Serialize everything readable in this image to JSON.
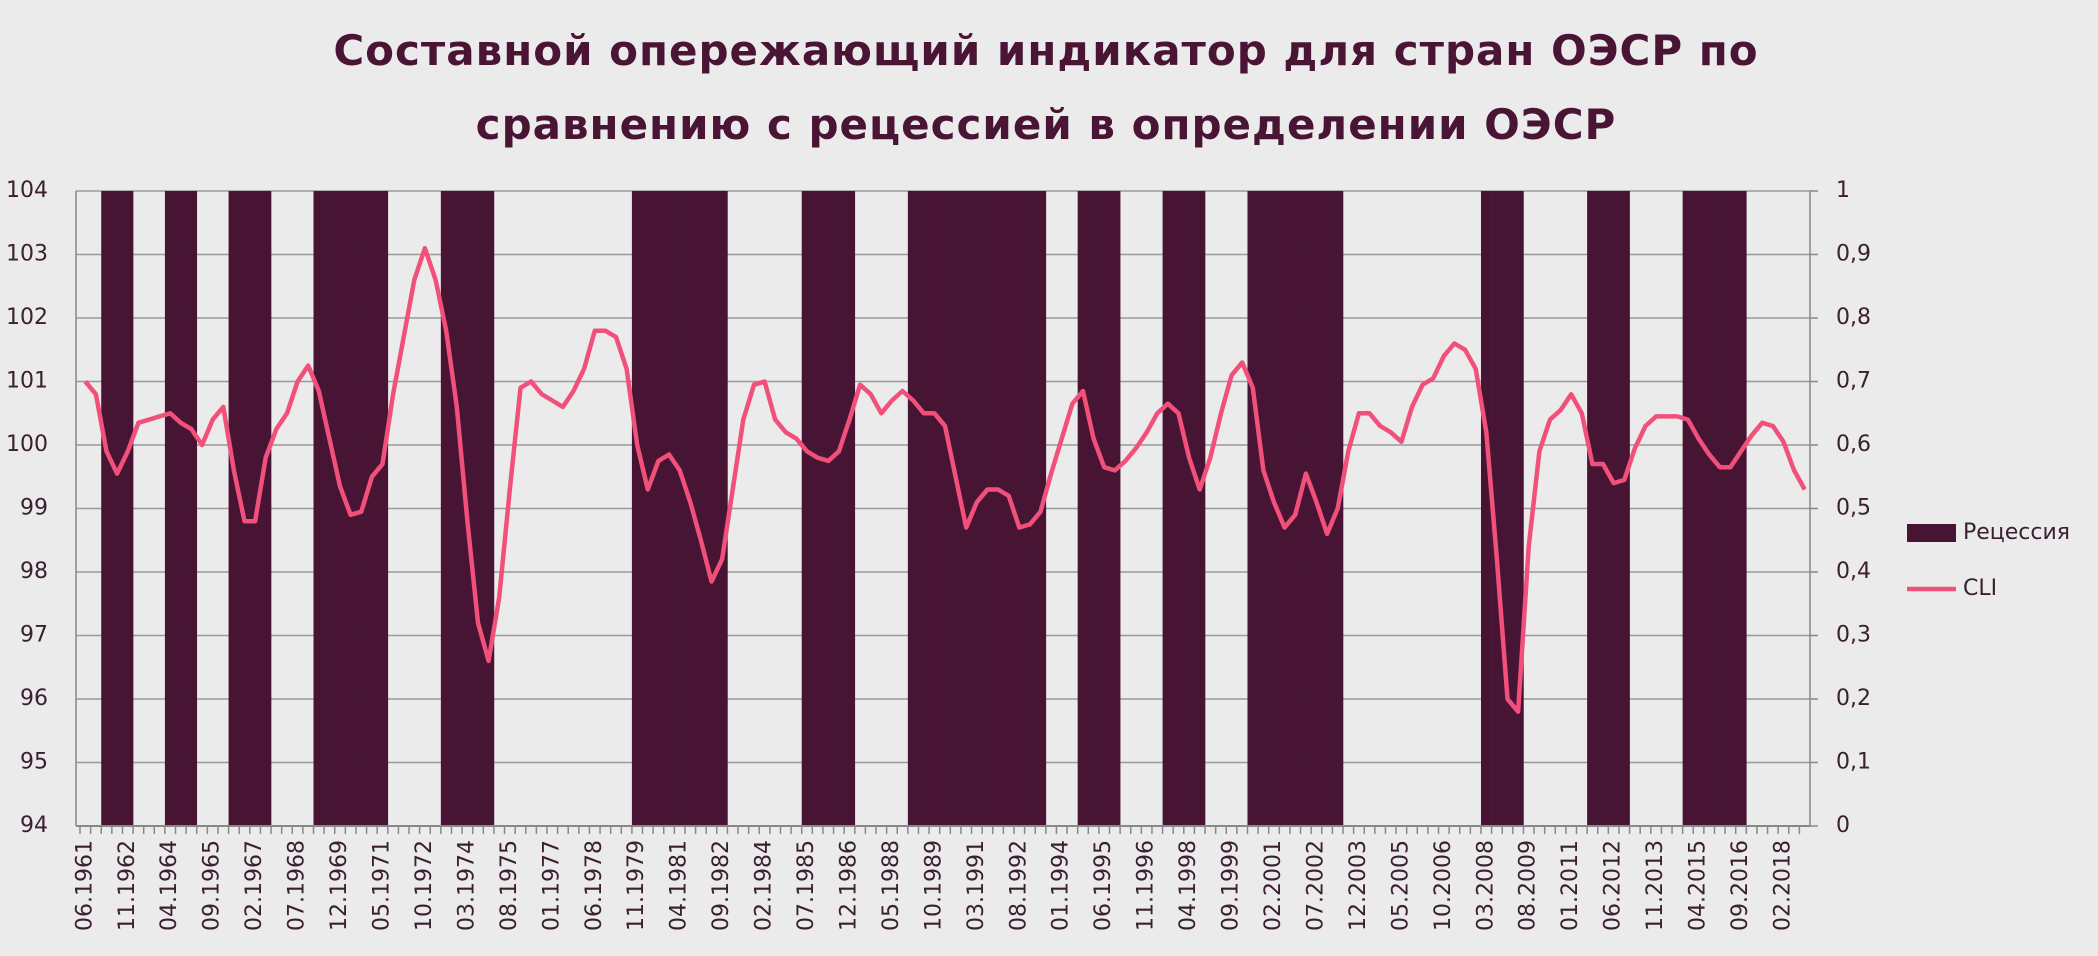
{
  "chart_data": {
    "type": "combo",
    "title": "Составной опережающий индикатор для стран ОЭСР по сравнению с рецессией в определении ОЭСР",
    "categories": [
      "06.1961",
      null,
      null,
      null,
      "11.1962",
      null,
      null,
      null,
      "04.1964",
      null,
      null,
      null,
      "09.1965",
      null,
      null,
      null,
      "02.1967",
      null,
      null,
      null,
      "07.1968",
      null,
      null,
      null,
      "12.1969",
      null,
      null,
      null,
      "05.1971",
      null,
      null,
      null,
      "10.1972",
      null,
      null,
      null,
      "03.1974",
      null,
      null,
      null,
      "08.1975",
      null,
      null,
      null,
      "01.1977",
      null,
      null,
      null,
      "06.1978",
      null,
      null,
      null,
      "11.1979",
      null,
      null,
      null,
      "04.1981",
      null,
      null,
      null,
      "09.1982",
      null,
      null,
      null,
      "02.1984",
      null,
      null,
      null,
      "07.1985",
      null,
      null,
      null,
      "12.1986",
      null,
      null,
      null,
      "05.1988",
      null,
      null,
      null,
      "10.1989",
      null,
      null,
      null,
      "03.1991",
      null,
      null,
      null,
      "08.1992",
      null,
      null,
      null,
      "01.1994",
      null,
      null,
      null,
      "06.1995",
      null,
      null,
      null,
      "11.1996",
      null,
      null,
      null,
      "04.1998",
      null,
      null,
      null,
      "09.1999",
      null,
      null,
      null,
      "02.2001",
      null,
      null,
      null,
      "07.2002",
      null,
      null,
      null,
      "12.2003",
      null,
      null,
      null,
      "05.2005",
      null,
      null,
      null,
      "10.2006",
      null,
      null,
      null,
      "03.2008",
      null,
      null,
      null,
      "08.2009",
      null,
      null,
      null,
      "01.2011",
      null,
      null,
      null,
      "06.2012",
      null,
      null,
      null,
      "11.2013",
      null,
      null,
      null,
      "04.2015",
      null,
      null,
      null,
      "09.2016",
      null,
      null,
      null,
      "02.2018",
      null,
      null
    ],
    "series": [
      {
        "name": "Рецессия",
        "type": "bar",
        "axis": "y2",
        "color": "#471434",
        "values": [
          0,
          0,
          1,
          1,
          1,
          0,
          0,
          0,
          1,
          1,
          1,
          0,
          0,
          0,
          1,
          1,
          1,
          1,
          0,
          0,
          0,
          0,
          1,
          1,
          1,
          1,
          1,
          1,
          1,
          0,
          0,
          0,
          0,
          0,
          1,
          1,
          1,
          1,
          1,
          0,
          0,
          0,
          0,
          0,
          0,
          0,
          0,
          0,
          0,
          0,
          0,
          0,
          1,
          1,
          1,
          1,
          1,
          1,
          1,
          1,
          1,
          0,
          0,
          0,
          0,
          0,
          0,
          0,
          1,
          1,
          1,
          1,
          1,
          0,
          0,
          0,
          0,
          0,
          1,
          1,
          1,
          1,
          1,
          1,
          1,
          1,
          1,
          1,
          1,
          1,
          1,
          0,
          0,
          0,
          1,
          1,
          1,
          1,
          0,
          0,
          0,
          0,
          1,
          1,
          1,
          1,
          0,
          0,
          0,
          0,
          1,
          1,
          1,
          1,
          1,
          1,
          1,
          1,
          1,
          0,
          0,
          0,
          0,
          0,
          0,
          0,
          0,
          0,
          0,
          0,
          0,
          0,
          1,
          1,
          1,
          1,
          0,
          0,
          0,
          0,
          0,
          0,
          1,
          1,
          1,
          1,
          0,
          0,
          0,
          0,
          0,
          1,
          1,
          1,
          1,
          1,
          1,
          0,
          0,
          0,
          0,
          0,
          0
        ]
      },
      {
        "name": "CLI",
        "type": "line",
        "color": "#f0507a",
        "values": [
          101.0,
          100.8,
          99.9,
          99.55,
          99.9,
          100.35,
          100.4,
          100.45,
          100.5,
          100.35,
          100.25,
          100.0,
          100.4,
          100.6,
          99.6,
          98.8,
          98.8,
          99.8,
          100.25,
          100.5,
          101.0,
          101.25,
          100.85,
          100.1,
          99.35,
          98.9,
          98.95,
          99.5,
          99.7,
          100.8,
          101.7,
          102.6,
          103.1,
          102.6,
          101.8,
          100.6,
          98.8,
          97.2,
          96.6,
          97.6,
          99.3,
          100.9,
          101.0,
          100.8,
          100.7,
          100.6,
          100.85,
          101.2,
          101.8,
          101.8,
          101.7,
          101.2,
          100.0,
          99.3,
          99.75,
          99.85,
          99.6,
          99.1,
          98.5,
          97.85,
          98.2,
          99.3,
          100.4,
          100.95,
          101.0,
          100.4,
          100.2,
          100.1,
          99.9,
          99.8,
          99.75,
          99.9,
          100.4,
          100.95,
          100.8,
          100.5,
          100.7,
          100.85,
          100.7,
          100.5,
          100.5,
          100.3,
          99.5,
          98.7,
          99.1,
          99.3,
          99.3,
          99.2,
          98.7,
          98.75,
          98.95,
          99.55,
          100.1,
          100.65,
          100.85,
          100.1,
          99.65,
          99.6,
          99.75,
          99.95,
          100.2,
          100.5,
          100.65,
          100.5,
          99.8,
          99.3,
          99.8,
          100.5,
          101.1,
          101.3,
          100.9,
          99.6,
          99.1,
          98.7,
          98.9,
          99.55,
          99.1,
          98.6,
          99.0,
          99.9,
          100.5,
          100.5,
          100.3,
          100.2,
          100.05,
          100.6,
          100.95,
          101.05,
          101.4,
          101.6,
          101.5,
          101.2,
          100.2,
          98.2,
          96.0,
          95.8,
          98.4,
          99.9,
          100.4,
          100.55,
          100.8,
          100.5,
          99.7,
          99.7,
          99.4,
          99.45,
          99.95,
          100.3,
          100.45,
          100.45,
          100.45,
          100.4,
          100.1,
          99.85,
          99.65,
          99.65,
          99.9,
          100.15,
          100.35,
          100.3,
          100.05,
          99.6,
          99.3
        ]
      }
    ],
    "ylim": [
      94,
      104
    ],
    "yticks": [
      94,
      95,
      96,
      97,
      98,
      99,
      100,
      101,
      102,
      103,
      104
    ],
    "y2lim": [
      0,
      1
    ],
    "y2ticks": [
      0,
      {
        "value": 0.1,
        "label": "0,1"
      },
      {
        "value": 0.2,
        "label": "0,2"
      },
      {
        "value": 0.3,
        "label": "0,3"
      },
      {
        "value": 0.4,
        "label": "0,4"
      },
      {
        "value": 0.5,
        "label": "0,5"
      },
      {
        "value": 0.6,
        "label": "0,6"
      },
      {
        "value": 0.7,
        "label": "0,7"
      },
      {
        "value": 0.8,
        "label": "0,8"
      },
      {
        "value": 0.9,
        "label": "0,9"
      },
      1
    ],
    "grid": true,
    "legend": "right"
  }
}
